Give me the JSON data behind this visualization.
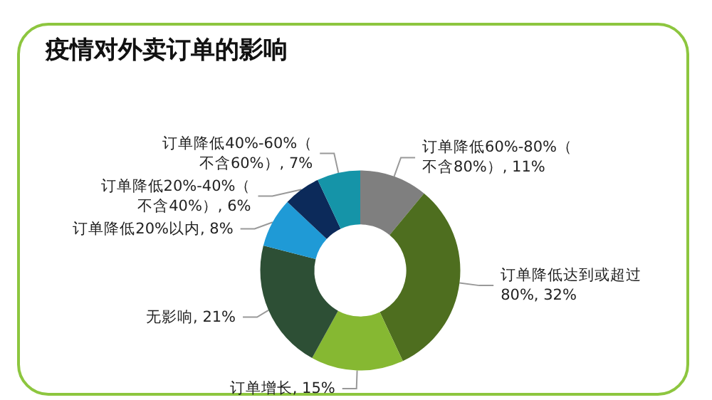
{
  "chart_data": {
    "type": "donut",
    "title": "疫情对外卖订单的影响",
    "categories": [
      "订单降低60%-80%（不含80%）",
      "订单降低达到或超过80%",
      "订单增长",
      "无影响",
      "订单降低20%以内",
      "订单降低20%-40%（不含40%）",
      "订单降低40%-60%（不含60%）"
    ],
    "values": [
      11,
      32,
      15,
      21,
      8,
      6,
      7
    ],
    "value_labels": [
      "11%",
      "32%",
      "15%",
      "21%",
      "8%",
      "6%",
      "7%"
    ],
    "colors": [
      "#7f7f7f",
      "#4e6e1f",
      "#86b832",
      "#2d4f35",
      "#1f9ad6",
      "#0c2a5a",
      "#1594a8"
    ],
    "legend": false
  }
}
